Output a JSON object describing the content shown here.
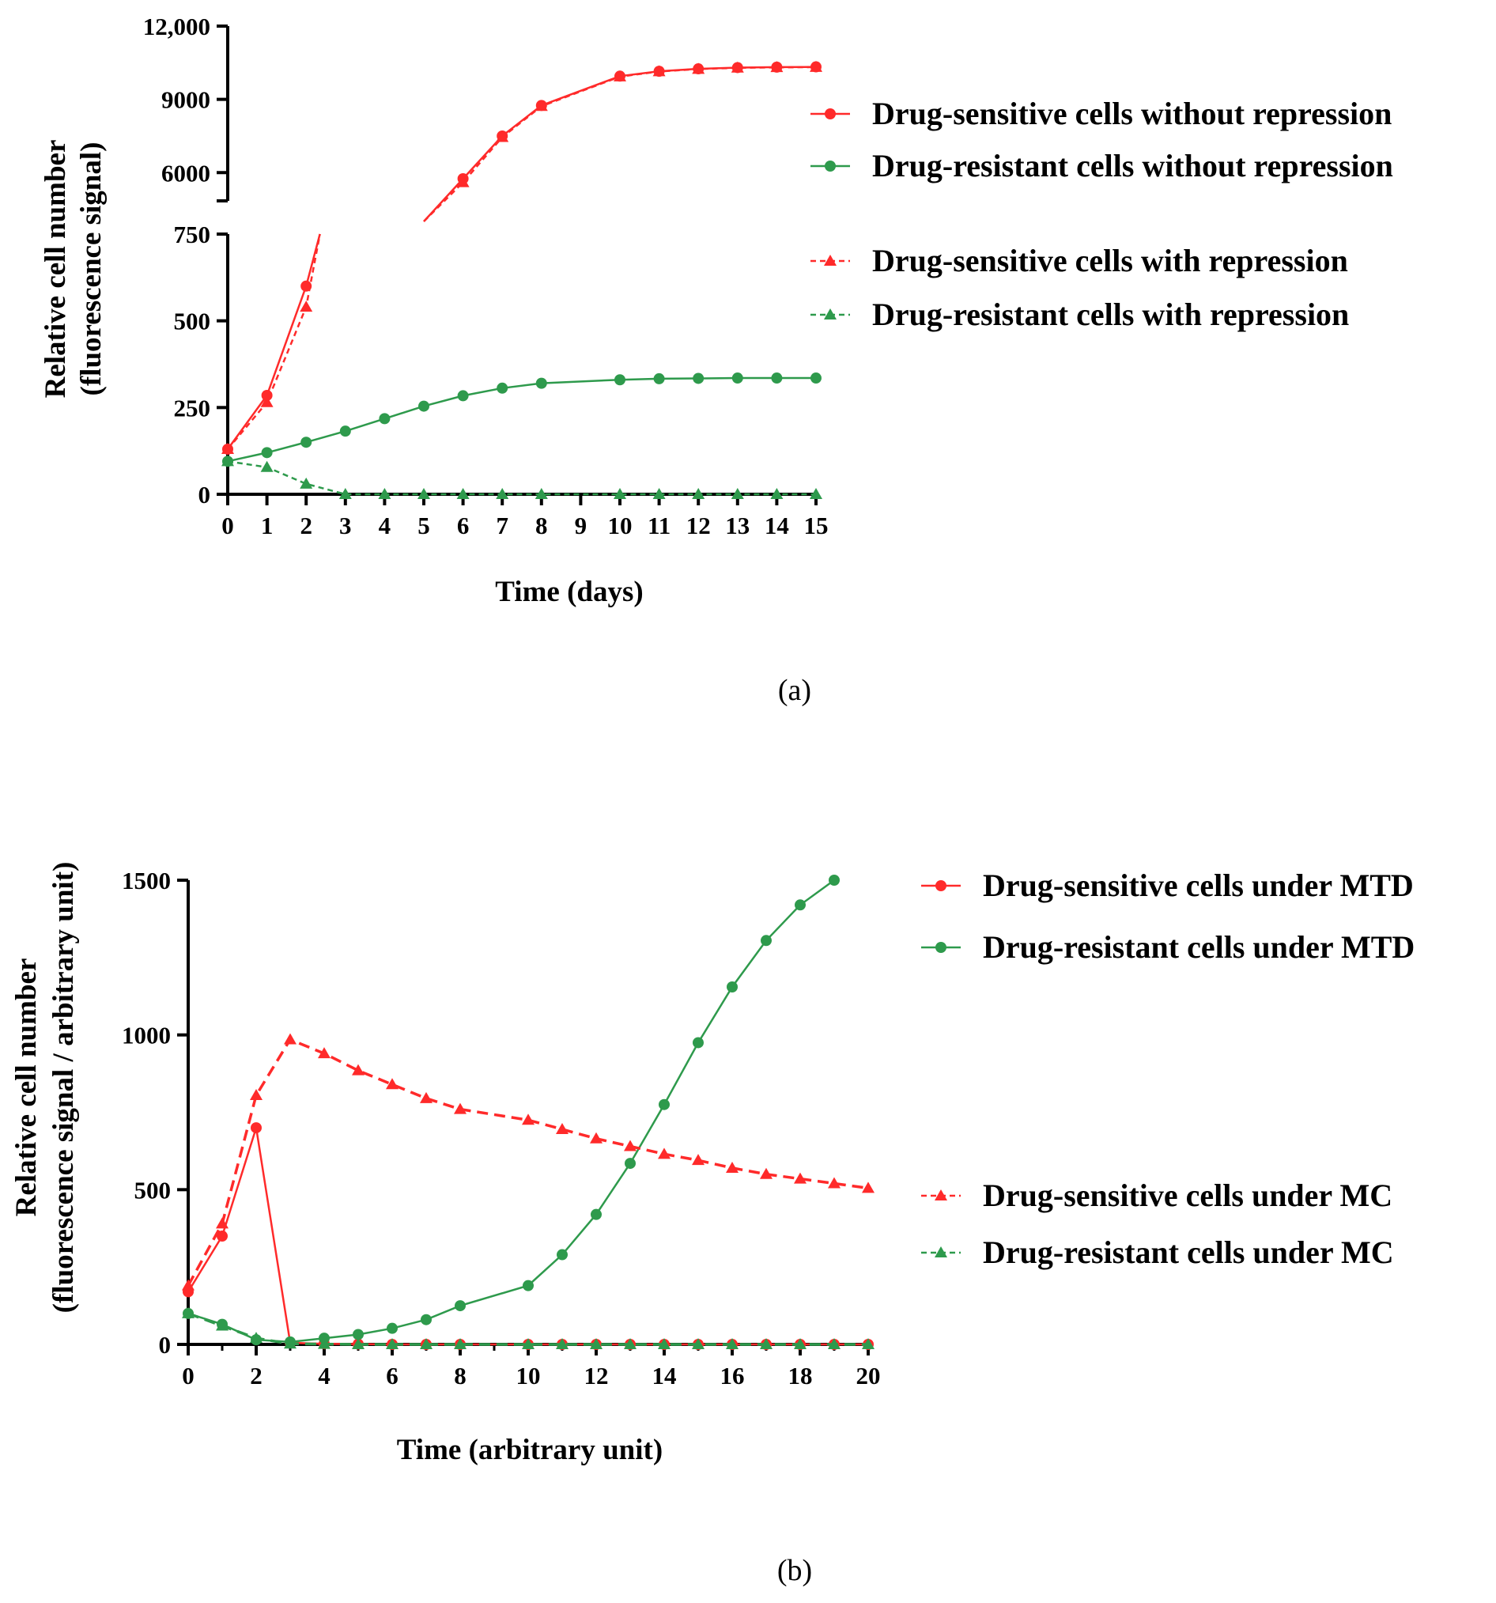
{
  "colors": {
    "red": "#ff2a2a",
    "green": "#2e9a4c",
    "axis": "#000000"
  },
  "chart_data": [
    {
      "panel_label": "(a)",
      "type": "line",
      "xlabel": "Time (days)",
      "ylabel_line1": "Relative cell number",
      "ylabel_line2": "(fluorescence signal)",
      "x_ticks": [
        "0",
        "1",
        "2",
        "3",
        "4",
        "5",
        "6",
        "7",
        "8",
        "9",
        "10",
        "11",
        "12",
        "13",
        "14",
        "15"
      ],
      "xlim": [
        0,
        15
      ],
      "y_ticks_lower": [
        "0",
        "250",
        "500",
        "750"
      ],
      "y_ticks_upper": [
        "6000",
        "9000",
        "12,000"
      ],
      "ylim_lower": [
        0,
        750
      ],
      "ylim_upper": [
        4000,
        12000
      ],
      "series": [
        {
          "name": "Drug-sensitive cells without repression",
          "color": "red",
          "style": "solid",
          "marker": "circle",
          "x": [
            0,
            1,
            2,
            6,
            7,
            8,
            10,
            11,
            12,
            13,
            14,
            15
          ],
          "y": [
            130,
            285,
            600,
            5750,
            7500,
            8750,
            9950,
            10150,
            10250,
            10300,
            10320,
            10330
          ]
        },
        {
          "name": "Drug-resistant cells without repression",
          "color": "green",
          "style": "solid",
          "marker": "circle",
          "x": [
            0,
            1,
            2,
            3,
            4,
            5,
            6,
            7,
            8,
            10,
            11,
            12,
            13,
            14,
            15
          ],
          "y": [
            95,
            120,
            150,
            182,
            218,
            254,
            284,
            306,
            320,
            330,
            333,
            334,
            335,
            335,
            335
          ]
        },
        {
          "name": "Drug-sensitive cells with repression",
          "color": "red",
          "style": "dashed",
          "marker": "triangle",
          "x": [
            0,
            1,
            2,
            6,
            7,
            8,
            10,
            11,
            12,
            13,
            14,
            15
          ],
          "y": [
            130,
            265,
            540,
            5600,
            7450,
            8720,
            9930,
            10140,
            10240,
            10290,
            10310,
            10320
          ]
        },
        {
          "name": "Drug-resistant cells with repression",
          "color": "green",
          "style": "dashed",
          "marker": "triangle",
          "x": [
            0,
            1,
            2,
            3,
            4,
            5,
            6,
            7,
            8,
            10,
            11,
            12,
            13,
            14,
            15
          ],
          "y": [
            95,
            78,
            30,
            0,
            0,
            0,
            0,
            0,
            0,
            0,
            0,
            0,
            0,
            0,
            0
          ]
        }
      ]
    },
    {
      "panel_label": "(b)",
      "type": "line",
      "xlabel": "Time (arbitrary unit)",
      "ylabel_line1": "Relative cell number",
      "ylabel_line2": "(fluorescence signal / arbitrary unit)",
      "x_ticks": [
        "0",
        "2",
        "4",
        "6",
        "8",
        "10",
        "12",
        "14",
        "16",
        "18",
        "20"
      ],
      "xlim": [
        0,
        20
      ],
      "y_ticks": [
        "0",
        "500",
        "1000",
        "1500"
      ],
      "ylim": [
        0,
        1500
      ],
      "series": [
        {
          "name": "Drug-sensitive cells under MTD",
          "color": "red",
          "style": "solid",
          "marker": "circle",
          "x": [
            0,
            1,
            2,
            3,
            4,
            5,
            6,
            7,
            8,
            10,
            11,
            12,
            13,
            14,
            15,
            16,
            17,
            18,
            19,
            20
          ],
          "y": [
            170,
            350,
            700,
            5,
            2,
            1,
            0,
            0,
            0,
            0,
            0,
            0,
            0,
            0,
            0,
            0,
            0,
            0,
            0,
            0
          ]
        },
        {
          "name": "Drug-resistant cells under MTD",
          "color": "green",
          "style": "solid",
          "marker": "circle",
          "x": [
            0,
            1,
            2,
            3,
            4,
            5,
            6,
            7,
            8,
            10,
            11,
            12,
            13,
            14,
            15,
            16,
            17,
            18,
            19
          ],
          "y": [
            100,
            65,
            15,
            8,
            20,
            32,
            52,
            80,
            125,
            190,
            290,
            420,
            585,
            775,
            975,
            1155,
            1305,
            1420,
            1500
          ]
        },
        {
          "name": "Drug-sensitive cells under MC",
          "color": "red",
          "style": "dashed",
          "marker": "triangle",
          "x": [
            0,
            1,
            2,
            3,
            4,
            5,
            6,
            7,
            8,
            10,
            11,
            12,
            13,
            14,
            15,
            16,
            17,
            18,
            19,
            20
          ],
          "y": [
            190,
            390,
            805,
            985,
            940,
            885,
            840,
            795,
            760,
            725,
            695,
            665,
            640,
            615,
            595,
            570,
            550,
            535,
            520,
            505
          ]
        },
        {
          "name": "Drug-resistant cells under MC",
          "color": "green",
          "style": "dashed",
          "marker": "triangle",
          "x": [
            0,
            1,
            2,
            3,
            4,
            5,
            6,
            7,
            8,
            10,
            11,
            12,
            13,
            14,
            15,
            16,
            17,
            18,
            19,
            20
          ],
          "y": [
            100,
            60,
            20,
            2,
            1,
            0,
            0,
            0,
            0,
            0,
            0,
            0,
            0,
            0,
            0,
            0,
            0,
            0,
            0,
            0
          ]
        }
      ]
    }
  ]
}
